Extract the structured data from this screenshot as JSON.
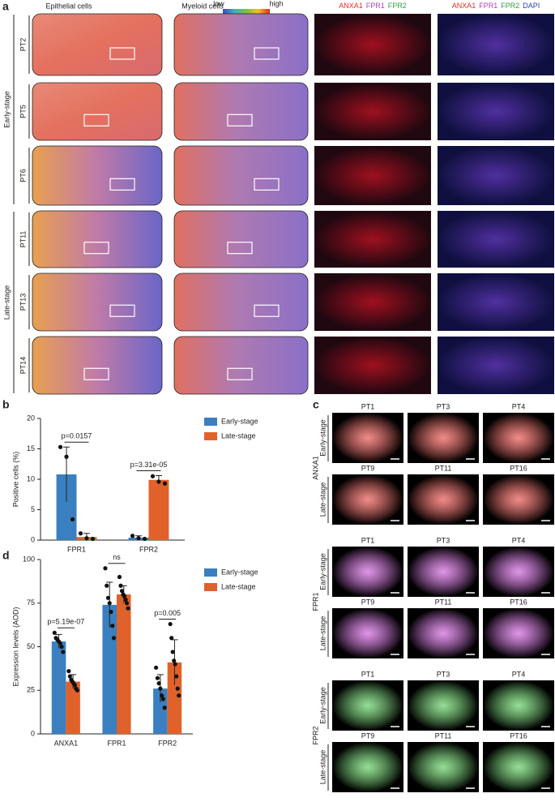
{
  "panel_labels": [
    "a",
    "b",
    "c",
    "d"
  ],
  "panel_a": {
    "column_headers": [
      "Epithelial cells",
      "Myeloid cells"
    ],
    "colorbar_labels": [
      "low",
      "high"
    ],
    "fluor_headers": [
      [
        {
          "text": "ANXA1",
          "color": "#e0302a"
        },
        {
          "text": "FPR1",
          "color": "#b040c8"
        },
        {
          "text": "FPR2",
          "color": "#30a040"
        }
      ],
      [
        {
          "text": "ANXA1",
          "color": "#e0302a"
        },
        {
          "text": "FPR1",
          "color": "#b040c8"
        },
        {
          "text": "FPR2",
          "color": "#30a040"
        },
        {
          "text": "DAPI",
          "color": "#3040c0"
        }
      ]
    ],
    "groups": [
      {
        "name": "Early-stage",
        "samples": [
          "PT2",
          "PT5",
          "PT6"
        ]
      },
      {
        "name": "Late-stage",
        "samples": [
          "PT11",
          "PT13",
          "PT14"
        ]
      }
    ]
  },
  "chart_data": [
    {
      "type": "bar",
      "ylabel": "Positive cells (%)",
      "categories": [
        "FPR1",
        "FPR2"
      ],
      "ylim": [
        0,
        20
      ],
      "yticks": [
        0,
        5,
        10,
        15,
        20
      ],
      "series": [
        {
          "name": "Early-stage",
          "color": "#3a80c0",
          "values": [
            10.8,
            0.4
          ],
          "errors": [
            4.5,
            0.3
          ],
          "points": [
            [
              15.3,
              13.7,
              3.4
            ],
            [
              0.7,
              0.3,
              0.2
            ]
          ]
        },
        {
          "name": "Late-stage",
          "color": "#e0622a",
          "values": [
            0.5,
            9.9
          ],
          "errors": [
            0.6,
            0.7
          ],
          "points": [
            [
              1.1,
              0.3,
              0.2
            ],
            [
              10.5,
              9.6,
              9.3
            ]
          ]
        }
      ],
      "annotations": [
        "p=0.0157",
        "p=3.31e-05"
      ]
    },
    {
      "type": "bar",
      "ylabel": "Expression levels (AOD)",
      "categories": [
        "ANXA1",
        "FPR1",
        "FPR2"
      ],
      "ylim": [
        0,
        100
      ],
      "yticks": [
        0,
        25,
        50,
        75,
        100
      ],
      "series": [
        {
          "name": "Early-stage",
          "color": "#3a80c0",
          "values": [
            53,
            74,
            26
          ],
          "errors": [
            4,
            13,
            8
          ],
          "points": [
            [
              58,
              55,
              54,
              53,
              52,
              50,
              47
            ],
            [
              95,
              85,
              78,
              75,
              70,
              62,
              55
            ],
            [
              38,
              32,
              29,
              26,
              22,
              20,
              15
            ]
          ]
        },
        {
          "name": "Late-stage",
          "color": "#e0622a",
          "values": [
            30,
            80,
            41
          ],
          "errors": [
            4,
            5,
            13
          ],
          "points": [
            [
              36,
              33,
              31,
              30,
              29,
              28,
              26,
              25
            ],
            [
              90,
              85,
              82,
              80,
              79,
              77,
              75,
              72
            ],
            [
              63,
              55,
              47,
              42,
              40,
              33,
              26,
              22
            ]
          ]
        }
      ],
      "annotations": [
        "p=5.19e-07",
        "ns",
        "p=0.005"
      ]
    }
  ],
  "panel_c": {
    "markers": [
      {
        "name": "ANXA1",
        "color": "#e0302a",
        "rows": [
          {
            "stage": "Early-stage",
            "samples": [
              "PT1",
              "PT3",
              "PT4"
            ]
          },
          {
            "stage": "Late-stage",
            "samples": [
              "PT9",
              "PT11",
              "PT16"
            ]
          }
        ]
      },
      {
        "name": "FPR1",
        "color": "#c040d0",
        "rows": [
          {
            "stage": "Early-stage",
            "samples": [
              "PT1",
              "PT3",
              "PT4"
            ]
          },
          {
            "stage": "Late-stage",
            "samples": [
              "PT9",
              "PT11",
              "PT16"
            ]
          }
        ]
      },
      {
        "name": "FPR2",
        "color": "#40c040",
        "rows": [
          {
            "stage": "Early-stage",
            "samples": [
              "PT1",
              "PT3",
              "PT4"
            ]
          },
          {
            "stage": "Late-stage",
            "samples": [
              "PT9",
              "PT11",
              "PT16"
            ]
          }
        ]
      }
    ]
  }
}
